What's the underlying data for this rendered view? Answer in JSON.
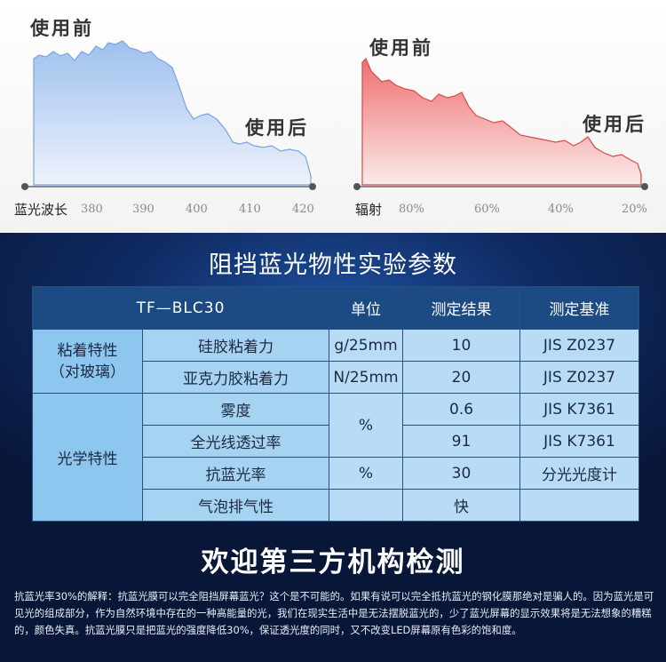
{
  "charts": {
    "left": {
      "before_label": "使用前",
      "after_label": "使用后",
      "axis_unit": "蓝光波长",
      "ticks": [
        "380",
        "390",
        "400",
        "410",
        "420"
      ],
      "colors": {
        "fill_top": "#9ec0ee",
        "fill_bottom": "#eef3fb",
        "line": "#7aa3e0"
      }
    },
    "right": {
      "before_label": "使用前",
      "after_label": "使用后",
      "axis_unit": "辐射",
      "ticks": [
        "80%",
        "60%",
        "40%",
        "20%"
      ],
      "colors": {
        "fill_top": "#f07a7a",
        "fill_bottom": "#fbeaea",
        "line": "#d94a4a"
      }
    }
  },
  "table": {
    "title": "阻挡蓝光物性实验参数",
    "headers": [
      "TF—BLC30",
      "单位",
      "测定结果",
      "测定基准"
    ],
    "groups": {
      "adhesion": "粘着特性\n（对玻璃）",
      "optical": "光学特性"
    },
    "rows": [
      {
        "item": "硅胶粘着力",
        "unit": "g/25mm",
        "result": "10",
        "standard": "JIS Z0237"
      },
      {
        "item": "亚克力胶粘着力",
        "unit": "N/25mm",
        "result": "20",
        "standard": "JIS Z0237"
      },
      {
        "item": "雾度",
        "unit": "%",
        "result": "0.6",
        "standard": "JIS K7361"
      },
      {
        "item": "全光线透过率",
        "unit": "",
        "result": "91",
        "standard": "JIS K7361"
      },
      {
        "item": "抗蓝光率",
        "unit": "%",
        "result": "30",
        "standard": "分光光度计"
      },
      {
        "item": "气泡排气性",
        "unit": "",
        "result": "快",
        "standard": ""
      }
    ]
  },
  "welcome": "欢迎第三方机构检测",
  "note": "抗蓝光率30%的解释：抗蓝光膜可以完全阻挡屏幕蓝光？这个是不可能的。如果有说可以完全抵抗蓝光的钢化膜那绝对是骗人的。因为蓝光是可见光的组成部分，作为自然环境中存在的一种高能量的光，我们在现实生活中是无法摆脱蓝光的，少了蓝光屏幕的显示效果将是无法想象的糟糕的，颜色失真。抗蓝光膜只是把蓝光的强度降低30%，保证透光度的同时，又不改变LED屏幕原有色彩的饱和度。"
}
